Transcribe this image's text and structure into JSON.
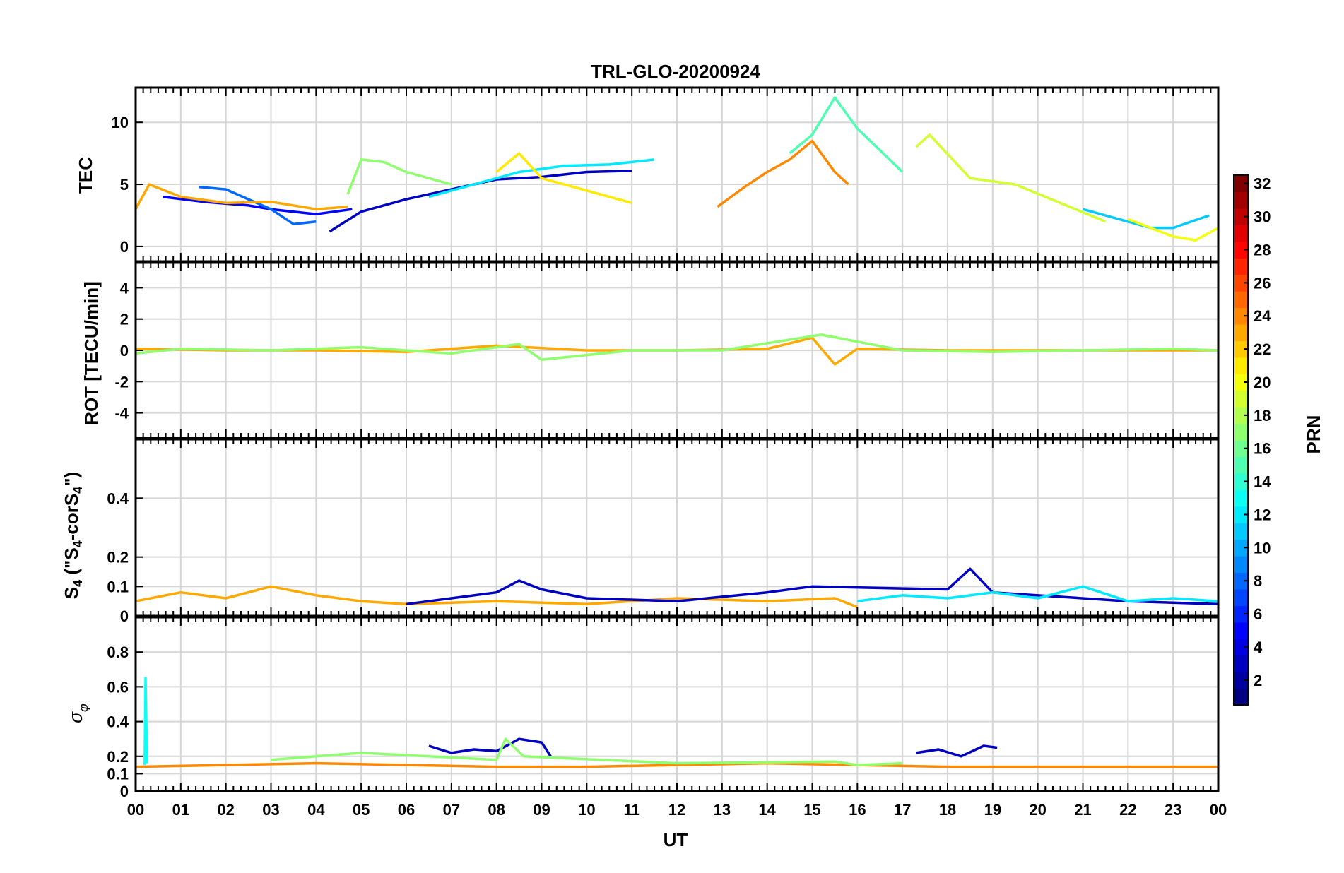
{
  "chart_data": {
    "type": "line",
    "title": "TRL-GLO-20200924",
    "xlabel": "UT",
    "x_ticks": [
      "00",
      "01",
      "02",
      "03",
      "04",
      "05",
      "06",
      "07",
      "08",
      "09",
      "10",
      "11",
      "12",
      "13",
      "14",
      "15",
      "16",
      "17",
      "18",
      "19",
      "20",
      "21",
      "22",
      "23",
      "00"
    ],
    "xlim": [
      0,
      24
    ],
    "colorbar": {
      "label": "PRN",
      "ticks": [
        "2",
        "4",
        "6",
        "8",
        "10",
        "12",
        "14",
        "16",
        "18",
        "20",
        "22",
        "24",
        "26",
        "28",
        "30",
        "32"
      ],
      "range": [
        1,
        32
      ],
      "colormap": "jet"
    },
    "panels": [
      {
        "id": "tec",
        "ylabel": "TEC",
        "ylim": [
          -1.2,
          12.8
        ],
        "yticks": [
          0,
          5,
          10
        ],
        "ytick_labels": [
          "0",
          "5",
          "10"
        ],
        "series": [
          {
            "prn": 3,
            "x": [
              4.3,
              5.0,
              6.0,
              7.0,
              8.0,
              9.0,
              10.0,
              11.0
            ],
            "y": [
              1.2,
              2.8,
              3.8,
              4.6,
              5.4,
              5.6,
              6.0,
              6.1
            ]
          },
          {
            "prn": 5,
            "x": [
              0.6,
              1.5,
              2.5,
              3.0,
              4.0,
              4.8
            ],
            "y": [
              4.0,
              3.6,
              3.3,
              3.0,
              2.6,
              3.0
            ]
          },
          {
            "prn": 8,
            "x": [
              1.4,
              2.0,
              3.0,
              3.5,
              4.0
            ],
            "y": [
              4.8,
              4.6,
              3.0,
              1.8,
              2.0
            ]
          },
          {
            "prn": 12,
            "x": [
              6.5,
              7.5,
              8.5,
              9.5,
              10.5,
              11.5
            ],
            "y": [
              4.0,
              5.0,
              6.0,
              6.5,
              6.6,
              7.0
            ]
          },
          {
            "prn": 15,
            "x": [
              14.5,
              15.0,
              15.5,
              16.0,
              17.0
            ],
            "y": [
              7.5,
              9.0,
              12.0,
              9.5,
              6.0
            ]
          },
          {
            "prn": 17,
            "x": [
              4.7,
              5.0,
              5.5,
              6.0,
              7.0
            ],
            "y": [
              4.2,
              7.0,
              6.8,
              6.0,
              5.0
            ]
          },
          {
            "prn": 19,
            "x": [
              17.3,
              17.6,
              18.5,
              19.5,
              20.5,
              21.5
            ],
            "y": [
              8.0,
              9.0,
              5.5,
              5.0,
              3.5,
              2.0
            ]
          },
          {
            "prn": 21,
            "x": [
              8.0,
              8.5,
              9.0,
              10.0,
              11.0
            ],
            "y": [
              6.0,
              7.5,
              5.5,
              4.5,
              3.5
            ]
          },
          {
            "prn": 23,
            "x": [
              0.0,
              0.3,
              1.0,
              2.0,
              3.0,
              4.0,
              4.7
            ],
            "y": [
              3.0,
              5.0,
              4.0,
              3.5,
              3.6,
              3.0,
              3.2
            ]
          },
          {
            "prn": 24,
            "x": [
              12.9,
              13.5,
              14.0,
              14.5,
              15.0,
              15.5,
              15.8
            ],
            "y": [
              3.2,
              4.8,
              6.0,
              7.0,
              8.5,
              6.0,
              5.0
            ]
          },
          {
            "prn": 11,
            "x": [
              21.0,
              21.5,
              22.0,
              22.5,
              23.0,
              23.8
            ],
            "y": [
              3.0,
              2.5,
              2.0,
              1.5,
              1.5,
              2.5
            ]
          },
          {
            "prn": 20,
            "x": [
              22.0,
              22.5,
              23.0,
              23.5,
              24.0
            ],
            "y": [
              2.2,
              1.5,
              0.8,
              0.5,
              1.5
            ]
          }
        ]
      },
      {
        "id": "rot",
        "ylabel": "ROT [TECU/min]",
        "ylim": [
          -5.6,
          5.6
        ],
        "yticks": [
          -4,
          -2,
          0,
          2,
          4
        ],
        "ytick_labels": [
          "-4",
          "-2",
          "0",
          "2",
          "4"
        ],
        "series": [
          {
            "prn": 23,
            "x": [
              0,
              2,
              4,
              6,
              8,
              10,
              12,
              14,
              15,
              15.5,
              16,
              18,
              20,
              22,
              24
            ],
            "y": [
              0.1,
              0,
              0,
              -0.1,
              0.3,
              0,
              0,
              0.1,
              0.8,
              -0.9,
              0.1,
              0,
              0,
              0,
              0
            ]
          },
          {
            "prn": 17,
            "x": [
              0,
              1,
              3,
              5,
              7,
              8.5,
              9,
              11,
              13,
              15.2,
              17,
              19,
              21,
              23,
              24
            ],
            "y": [
              -0.2,
              0.1,
              0,
              0.2,
              -0.2,
              0.4,
              -0.6,
              0,
              0,
              1.0,
              0,
              -0.1,
              0,
              0.1,
              0
            ]
          }
        ]
      },
      {
        "id": "s4",
        "ylabel": "S4 (\"S4-corS4\")",
        "ylim": [
          0,
          0.6
        ],
        "yticks": [
          0,
          0.1,
          0.2,
          0.4
        ],
        "ytick_labels": [
          "0",
          "0.1",
          "0.2",
          "0.4"
        ],
        "series": [
          {
            "prn": 23,
            "x": [
              0,
              1,
              2,
              3,
              4,
              5,
              6,
              8,
              10,
              12,
              14,
              15.5,
              16
            ],
            "y": [
              0.05,
              0.08,
              0.06,
              0.1,
              0.07,
              0.05,
              0.04,
              0.05,
              0.04,
              0.06,
              0.05,
              0.06,
              0.03
            ]
          },
          {
            "prn": 3,
            "x": [
              6,
              7,
              8,
              8.5,
              9,
              10,
              12,
              14,
              15,
              18,
              18.5,
              19,
              22,
              24
            ],
            "y": [
              0.04,
              0.06,
              0.08,
              0.12,
              0.09,
              0.06,
              0.05,
              0.08,
              0.1,
              0.09,
              0.16,
              0.08,
              0.05,
              0.04
            ]
          },
          {
            "prn": 12,
            "x": [
              16,
              17,
              18,
              19,
              20,
              21,
              22,
              23,
              24
            ],
            "y": [
              0.05,
              0.07,
              0.06,
              0.08,
              0.06,
              0.1,
              0.05,
              0.06,
              0.05
            ]
          }
        ]
      },
      {
        "id": "sigma",
        "ylabel": "σ φ",
        "ylim": [
          0,
          1.0
        ],
        "yticks": [
          0,
          0.1,
          0.2,
          0.4,
          0.6,
          0.8
        ],
        "ytick_labels": [
          "0",
          "0.1",
          "0.2",
          "0.4",
          "0.6",
          "0.8"
        ],
        "series": [
          {
            "prn": 24,
            "x": [
              0,
              2,
              4,
              6,
              8,
              10,
              12,
              14,
              16,
              18,
              20,
              22,
              24
            ],
            "y": [
              0.14,
              0.15,
              0.16,
              0.15,
              0.14,
              0.14,
              0.15,
              0.16,
              0.15,
              0.14,
              0.14,
              0.14,
              0.14
            ]
          },
          {
            "prn": 3,
            "x": [
              6.5,
              7,
              7.5,
              8,
              8.5,
              9,
              9.2
            ],
            "y": [
              0.26,
              0.22,
              0.24,
              0.23,
              0.3,
              0.28,
              0.2
            ]
          },
          {
            "prn": 3,
            "x": [
              17.3,
              17.8,
              18.3,
              18.8,
              19.1
            ],
            "y": [
              0.22,
              0.24,
              0.2,
              0.26,
              0.25
            ]
          },
          {
            "prn": 13,
            "x": [
              0.2,
              0.22,
              0.25
            ],
            "y": [
              0.15,
              0.65,
              0.16
            ]
          },
          {
            "prn": 17,
            "x": [
              3,
              4,
              5,
              8,
              8.2,
              8.6,
              12,
              15.5,
              16,
              17
            ],
            "y": [
              0.18,
              0.2,
              0.22,
              0.18,
              0.3,
              0.2,
              0.16,
              0.17,
              0.15,
              0.16
            ]
          }
        ]
      }
    ]
  }
}
